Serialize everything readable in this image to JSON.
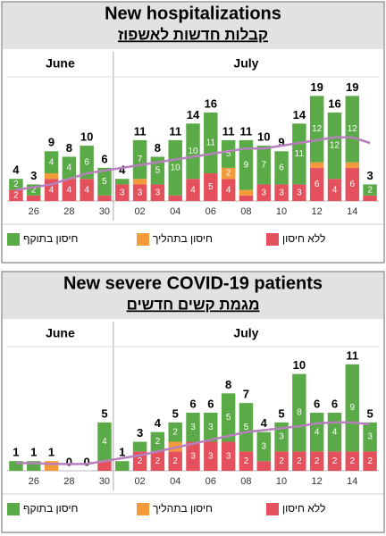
{
  "chart_data": [
    {
      "type": "stacked_bar",
      "title": "New hospitalizations",
      "subtitle": "קבלות חדשות לאשפוז",
      "months": [
        "June",
        "July"
      ],
      "categories": [
        null,
        "26",
        null,
        "28",
        null,
        "30",
        null,
        "02",
        null,
        "04",
        null,
        "06",
        null,
        "08",
        null,
        "10",
        null,
        "12",
        null,
        "14",
        null
      ],
      "series": [
        {
          "name": "ללא חיסון",
          "color": "#e4505c",
          "values": [
            2,
            1,
            4,
            4,
            4,
            1,
            3,
            3,
            3,
            1,
            4,
            5,
            4,
            1,
            3,
            3,
            3,
            6,
            4,
            6,
            1
          ]
        },
        {
          "name": "חיסון בתהליך",
          "color": "#f39a3b",
          "values": [
            0,
            0,
            1,
            0,
            0,
            0,
            0,
            1,
            0,
            0,
            0,
            0,
            2,
            1,
            0,
            0,
            0,
            1,
            0,
            1,
            0
          ]
        },
        {
          "name": "חיסון בתוקף",
          "color": "#5aab47",
          "values": [
            2,
            2,
            4,
            4,
            6,
            5,
            1,
            7,
            5,
            10,
            10,
            11,
            5,
            9,
            7,
            6,
            11,
            12,
            12,
            12,
            2
          ]
        }
      ],
      "totals": [
        4,
        3,
        9,
        8,
        10,
        6,
        4,
        11,
        8,
        11,
        14,
        16,
        11,
        11,
        10,
        9,
        14,
        19,
        16,
        19,
        3
      ],
      "trend": {
        "color": "#b87fbe",
        "values": [
          2,
          2.5,
          3,
          4,
          5,
          5.5,
          6,
          6.5,
          7,
          7.5,
          8,
          8.5,
          9,
          9.5,
          9.5,
          10,
          10.5,
          11,
          11.5,
          11.5,
          10.5
        ]
      },
      "ylim": [
        0,
        21
      ]
    },
    {
      "type": "stacked_bar",
      "title": "New severe COVID-19 patients",
      "subtitle": "מגמת קשים חדשים",
      "months": [
        "June",
        "July"
      ],
      "categories": [
        null,
        "26",
        null,
        "28",
        null,
        "30",
        null,
        "02",
        null,
        "04",
        null,
        "06",
        null,
        "08",
        null,
        "10",
        null,
        "12",
        null,
        "14",
        null
      ],
      "series": [
        {
          "name": "ללא חיסון",
          "color": "#e4505c",
          "values": [
            0,
            0,
            0,
            0,
            0,
            1,
            0,
            2,
            2,
            2,
            3,
            3,
            3,
            2,
            1,
            2,
            2,
            2,
            2,
            2,
            2
          ]
        },
        {
          "name": "חיסון בתהליך",
          "color": "#f39a3b",
          "values": [
            0,
            0,
            1,
            0,
            0,
            0,
            0,
            0,
            0,
            1,
            0,
            0,
            0,
            0,
            0,
            0,
            0,
            0,
            0,
            0,
            0
          ]
        },
        {
          "name": "חיסון בתוקף",
          "color": "#5aab47",
          "values": [
            1,
            1,
            0,
            0,
            0,
            4,
            1,
            1,
            2,
            2,
            3,
            3,
            5,
            5,
            3,
            3,
            8,
            4,
            4,
            9,
            3
          ]
        }
      ],
      "totals": [
        1,
        1,
        1,
        0,
        0,
        5,
        1,
        3,
        4,
        5,
        6,
        6,
        8,
        7,
        4,
        5,
        10,
        6,
        6,
        11,
        5
      ],
      "trend": {
        "color": "#b87fbe",
        "values": [
          0.8,
          0.8,
          0.7,
          0.7,
          0.7,
          1,
          1.3,
          1.6,
          2,
          2.4,
          2.8,
          3.2,
          3.6,
          4,
          4.2,
          4.4,
          4.6,
          4.9,
          5,
          5,
          4.8
        ]
      },
      "ylim": [
        0,
        12
      ]
    }
  ]
}
